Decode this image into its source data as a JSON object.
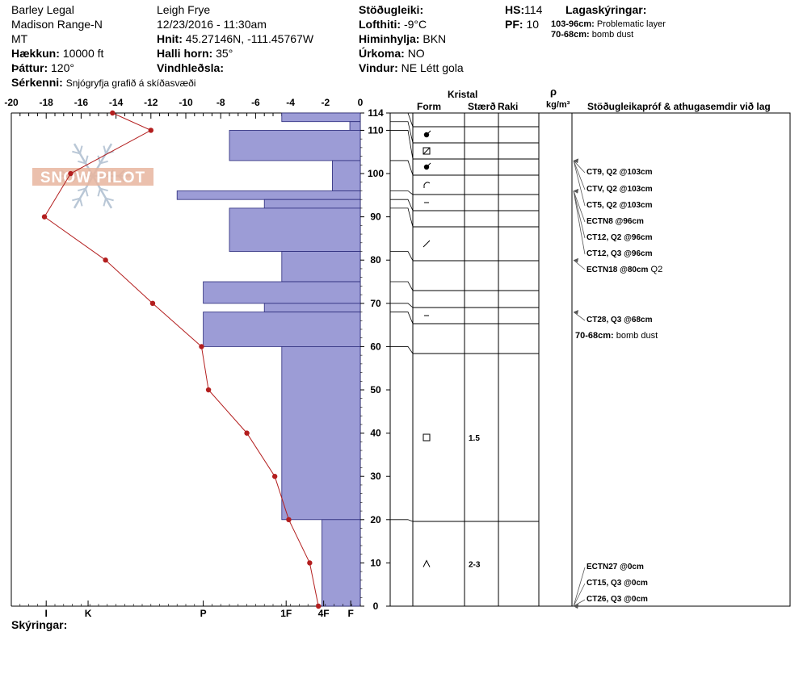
{
  "header": {
    "location": "Barley Legal",
    "range": "Madison Range-N",
    "state": "MT",
    "elevation_label": "Hækkun:",
    "elevation": "10000 ft",
    "aspect_label": "Þáttur:",
    "aspect": "120°",
    "observer": "Leigh Frye",
    "datetime": "12/23/2016 - 11:30am",
    "coords_label": "Hnit:",
    "coords": "45.27146N, -111.45767W",
    "slope_label": "Halli horn:",
    "slope": "35°",
    "wind_loading_label": "Vindhleðsla:",
    "wind_loading": "",
    "stability_label": "Stöðugleiki:",
    "stability": "",
    "air_temp_label": "Lofthiti:",
    "air_temp": "-9°C",
    "sky_label": "Himinhylja:",
    "sky": "BKN",
    "precip_label": "Úrkoma:",
    "precip": "NO",
    "wind_label": "Vindur:",
    "wind": "NE Létt gola",
    "hs_label": "HS:",
    "hs": "114",
    "pf_label": "PF:",
    "pf": "10",
    "specifics_label": "Sérkenni:",
    "specifics": "Snjógryfja grafið á skíðasvæði",
    "notes_label": "Skýringar:",
    "notes": ""
  },
  "layers_legend": {
    "title": "Lagaskýringar:",
    "items": [
      {
        "range": "103-96cm:",
        "text": "Problematic layer"
      },
      {
        "range": "70-68cm:",
        "text": "bomb dust"
      }
    ]
  },
  "columns": {
    "crystal": "Kristal",
    "form": "Form",
    "size": "Stærð",
    "moisture": "Raki",
    "density_symbol": "ρ",
    "density_unit": "kg/m³",
    "tests": "Stöðugleikapróf & athugasemdir við lag"
  },
  "watermark": "SNOW PILOT",
  "chart_data": {
    "type": "snow_profile",
    "temperature_axis": {
      "range": [
        -20,
        0
      ],
      "ticks": [
        "-20",
        "-18",
        "-16",
        "-14",
        "-12",
        "-10",
        "-8",
        "-6",
        "-4",
        "-2",
        "0"
      ]
    },
    "hardness_axis": {
      "labels": [
        "I",
        "K",
        "P",
        "1F",
        "4F",
        "F"
      ],
      "values": [
        18,
        15.6,
        9,
        4.25,
        2.1,
        0.55
      ]
    },
    "height_axis": {
      "range": [
        0,
        114
      ],
      "ticks": [
        "114",
        "110",
        "100",
        "90",
        "80",
        "70",
        "60",
        "50",
        "40",
        "30",
        "20",
        "10",
        "0"
      ],
      "tick_values": [
        114,
        110,
        100,
        90,
        80,
        70,
        60,
        50,
        40,
        30,
        20,
        10,
        0
      ]
    },
    "temperature_profile": [
      {
        "height": 114,
        "temp": -14.2
      },
      {
        "height": 110,
        "temp": -12
      },
      {
        "height": 100,
        "temp": -16.6
      },
      {
        "height": 90,
        "temp": -18.1
      },
      {
        "height": 80,
        "temp": -14.6
      },
      {
        "height": 70,
        "temp": -11.9
      },
      {
        "height": 60,
        "temp": -9.1
      },
      {
        "height": 50,
        "temp": -8.7
      },
      {
        "height": 40,
        "temp": -6.5
      },
      {
        "height": 30,
        "temp": -4.9
      },
      {
        "height": 20,
        "temp": -4.1
      },
      {
        "height": 10,
        "temp": -2.9
      },
      {
        "height": 0,
        "temp": -2.4
      }
    ],
    "hardness_profile": [
      {
        "top": 114,
        "bottom": 112,
        "hardness": 4.5
      },
      {
        "top": 112,
        "bottom": 110,
        "hardness": 0.6
      },
      {
        "top": 110,
        "bottom": 103,
        "hardness": 7.5
      },
      {
        "top": 103,
        "bottom": 96,
        "hardness": 1.6
      },
      {
        "top": 96,
        "bottom": 94,
        "hardness": 10.5
      },
      {
        "top": 94,
        "bottom": 92,
        "hardness": 5.5
      },
      {
        "top": 92,
        "bottom": 82,
        "hardness": 7.5
      },
      {
        "top": 82,
        "bottom": 75,
        "hardness": 4.5
      },
      {
        "top": 75,
        "bottom": 70,
        "hardness": 9
      },
      {
        "top": 70,
        "bottom": 68,
        "hardness": 5.5
      },
      {
        "top": 68,
        "bottom": 60,
        "hardness": 9
      },
      {
        "top": 60,
        "bottom": 20,
        "hardness": 4.5
      },
      {
        "top": 20,
        "bottom": 0,
        "hardness": 2.2
      }
    ],
    "layer_boundaries": [
      114,
      112,
      110,
      103,
      96,
      94,
      92,
      82,
      75,
      70,
      68,
      60,
      20,
      0
    ],
    "crystals": [
      {
        "top": 114,
        "bottom": 112,
        "form": "graupel",
        "size": ""
      },
      {
        "top": 112,
        "bottom": 110,
        "form": "crust",
        "size": ""
      },
      {
        "top": 110,
        "bottom": 103,
        "form": "graupel",
        "size": ""
      },
      {
        "top": 103,
        "bottom": 96,
        "form": "decomposing",
        "size": ""
      },
      {
        "top": 96,
        "bottom": 94,
        "form": "dash",
        "size": ""
      },
      {
        "top": 92,
        "bottom": 82,
        "form": "slash",
        "size": ""
      },
      {
        "top": 70,
        "bottom": 68,
        "form": "dash",
        "size": ""
      },
      {
        "top": 60,
        "bottom": 20,
        "form": "faceted",
        "size": "1.5"
      },
      {
        "top": 20,
        "bottom": 0,
        "form": "depth-hoar",
        "size": "2-3"
      }
    ],
    "stability_tests": [
      {
        "label": "CT9, Q2 @103cm",
        "height": 103,
        "extra": ""
      },
      {
        "label": "CTV, Q2 @103cm",
        "height": 103,
        "extra": ""
      },
      {
        "label": "CT5, Q2 @103cm",
        "height": 103,
        "extra": ""
      },
      {
        "label": "ECTN8 @96cm",
        "height": 96,
        "extra": ""
      },
      {
        "label": "CT12, Q2 @96cm",
        "height": 96,
        "extra": ""
      },
      {
        "label": "CT12, Q3 @96cm",
        "height": 96,
        "extra": ""
      },
      {
        "label": "ECTN18 @80cm",
        "height": 80,
        "extra": "Q2"
      },
      {
        "label": "CT28, Q3 @68cm",
        "height": 68,
        "extra": ""
      },
      {
        "label": "ECTN27 @0cm",
        "height": 0,
        "extra": ""
      },
      {
        "label": "CT15, Q3 @0cm",
        "height": 0,
        "extra": ""
      },
      {
        "label": "CT26, Q3 @0cm",
        "height": 0,
        "extra": ""
      }
    ],
    "layer_comments": [
      {
        "range": "70-68cm:",
        "text": "bomb dust"
      }
    ]
  },
  "colors": {
    "hardness_fill": "#9c9cd6",
    "hardness_stroke": "#2a2a7a",
    "temperature": "#b31e1e",
    "watermark": "#e7b59f"
  }
}
